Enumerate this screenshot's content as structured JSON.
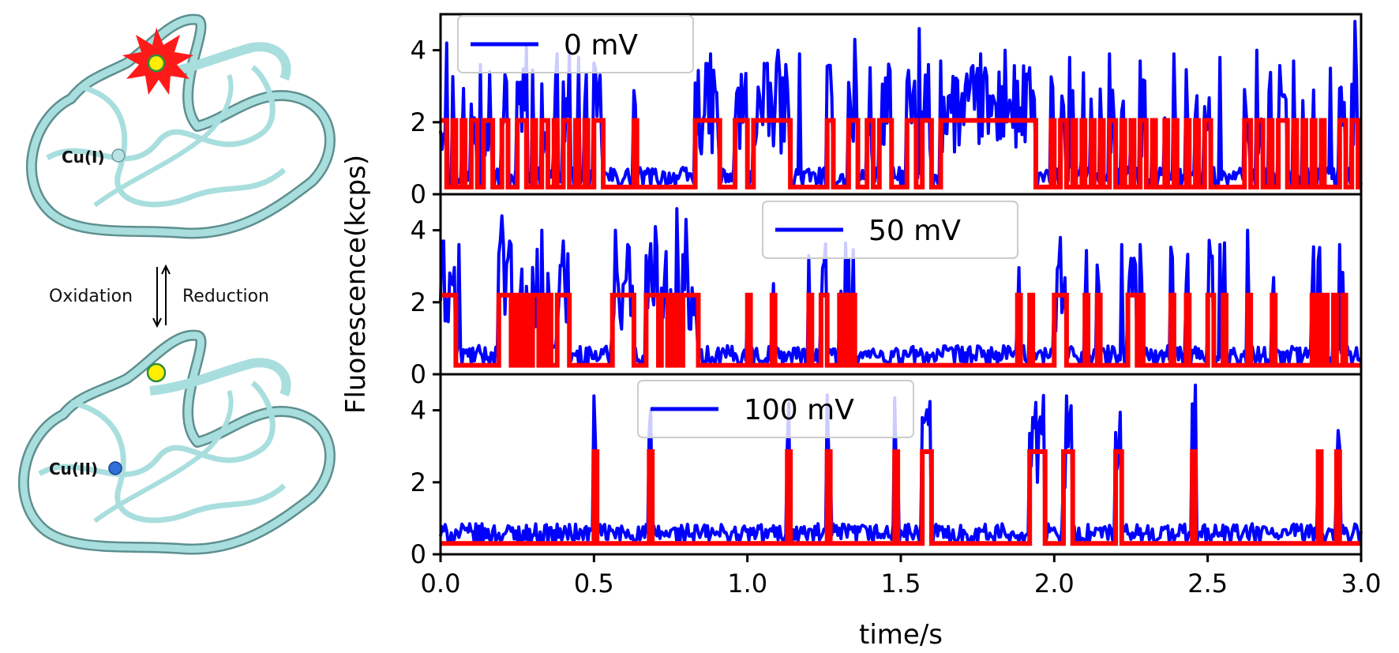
{
  "colors": {
    "raw_trace": "#0000ff",
    "fitted_trace": "#ff0000",
    "ribbon": "#a9dede",
    "ribbon_edge": "#5f8f8f",
    "fluorophore": "#ffee00",
    "burst": "#ff1a1a",
    "cu1_sphere": "#b9e3e3",
    "cu2_sphere": "#2f6fd8"
  },
  "diagram": {
    "label_cu1": "Cu(I)",
    "label_cu2": "Cu(II)",
    "label_oxidation": "Oxidation",
    "label_reduction": "Reduction"
  },
  "chart_data": {
    "type": "line",
    "xlabel": "time/s",
    "ylabel": "Fluorescence(kcps)",
    "xlim": [
      0.0,
      3.0
    ],
    "x_ticks": [
      "0.0",
      "0.5",
      "1.0",
      "1.5",
      "2.0",
      "2.5",
      "3.0"
    ],
    "y_ticks": [
      "0",
      "2",
      "4"
    ],
    "panels": [
      {
        "legend": "0 mV",
        "ylim": [
          0,
          5
        ],
        "high_level": 2.05,
        "low_level": 0.2,
        "on_intervals": [
          [
            0.0,
            0.02
          ],
          [
            0.04,
            0.05
          ],
          [
            0.07,
            0.08
          ],
          [
            0.1,
            0.12
          ],
          [
            0.14,
            0.17
          ],
          [
            0.2,
            0.22
          ],
          [
            0.25,
            0.28
          ],
          [
            0.3,
            0.31
          ],
          [
            0.33,
            0.35
          ],
          [
            0.37,
            0.38
          ],
          [
            0.4,
            0.42
          ],
          [
            0.44,
            0.45
          ],
          [
            0.47,
            0.48
          ],
          [
            0.5,
            0.53
          ],
          [
            0.63,
            0.64
          ],
          [
            0.83,
            0.91
          ],
          [
            0.96,
            1.0
          ],
          [
            1.02,
            1.14
          ],
          [
            1.26,
            1.28
          ],
          [
            1.33,
            1.36
          ],
          [
            1.39,
            1.41
          ],
          [
            1.43,
            1.47
          ],
          [
            1.52,
            1.55
          ],
          [
            1.57,
            1.6
          ],
          [
            1.63,
            1.94
          ],
          [
            1.99,
            2.0
          ],
          [
            2.02,
            2.04
          ],
          [
            2.06,
            2.07
          ],
          [
            2.09,
            2.1
          ],
          [
            2.12,
            2.13
          ],
          [
            2.15,
            2.16
          ],
          [
            2.18,
            2.2
          ],
          [
            2.22,
            2.23
          ],
          [
            2.25,
            2.26
          ],
          [
            2.28,
            2.3
          ],
          [
            2.32,
            2.33
          ],
          [
            2.36,
            2.37
          ],
          [
            2.39,
            2.4
          ],
          [
            2.43,
            2.44
          ],
          [
            2.46,
            2.47
          ],
          [
            2.49,
            2.51
          ],
          [
            2.62,
            2.64
          ],
          [
            2.66,
            2.68
          ],
          [
            2.7,
            2.71
          ],
          [
            2.73,
            2.76
          ],
          [
            2.78,
            2.79
          ],
          [
            2.81,
            2.82
          ],
          [
            2.84,
            2.85
          ],
          [
            2.87,
            2.88
          ],
          [
            2.93,
            2.95
          ],
          [
            2.97,
            2.99
          ]
        ],
        "peaks": [
          [
            0.02,
            4.2
          ],
          [
            0.13,
            3.6
          ],
          [
            0.16,
            3.4
          ],
          [
            0.28,
            4.1
          ],
          [
            0.38,
            3.9
          ],
          [
            0.42,
            4.0
          ],
          [
            0.45,
            3.8
          ],
          [
            0.88,
            3.9
          ],
          [
            1.1,
            4.0
          ],
          [
            1.17,
            3.9
          ],
          [
            1.35,
            4.3
          ],
          [
            1.56,
            4.6
          ],
          [
            1.63,
            3.7
          ],
          [
            1.76,
            3.9
          ],
          [
            1.84,
            4.0
          ],
          [
            2.05,
            3.8
          ],
          [
            2.18,
            3.9
          ],
          [
            2.28,
            3.7
          ],
          [
            2.39,
            3.9
          ],
          [
            2.54,
            3.8
          ],
          [
            2.66,
            4.0
          ],
          [
            2.78,
            3.7
          ],
          [
            2.9,
            3.5
          ],
          [
            2.98,
            4.8
          ]
        ]
      },
      {
        "legend": "50 mV",
        "ylim": [
          0,
          5
        ],
        "high_level": 2.2,
        "low_level": 0.25,
        "on_intervals": [
          [
            0.0,
            0.05
          ],
          [
            0.19,
            0.23
          ],
          [
            0.24,
            0.25
          ],
          [
            0.26,
            0.27
          ],
          [
            0.28,
            0.29
          ],
          [
            0.3,
            0.32
          ],
          [
            0.33,
            0.34
          ],
          [
            0.35,
            0.36
          ],
          [
            0.38,
            0.42
          ],
          [
            0.56,
            0.63
          ],
          [
            0.67,
            0.71
          ],
          [
            0.72,
            0.74
          ],
          [
            0.75,
            0.76
          ],
          [
            0.77,
            0.78
          ],
          [
            0.79,
            0.84
          ],
          [
            1.0,
            1.01
          ],
          [
            1.08,
            1.09
          ],
          [
            1.2,
            1.21
          ],
          [
            1.24,
            1.26
          ],
          [
            1.3,
            1.31
          ],
          [
            1.32,
            1.33
          ],
          [
            1.34,
            1.35
          ],
          [
            1.88,
            1.89
          ],
          [
            1.92,
            1.93
          ],
          [
            2.0,
            2.04
          ],
          [
            2.1,
            2.11
          ],
          [
            2.14,
            2.15
          ],
          [
            2.24,
            2.27
          ],
          [
            2.28,
            2.29
          ],
          [
            2.38,
            2.39
          ],
          [
            2.43,
            2.44
          ],
          [
            2.5,
            2.52
          ],
          [
            2.55,
            2.56
          ],
          [
            2.63,
            2.64
          ],
          [
            2.71,
            2.72
          ],
          [
            2.84,
            2.85
          ],
          [
            2.86,
            2.87
          ],
          [
            2.88,
            2.89
          ],
          [
            2.91,
            2.92
          ],
          [
            2.94,
            2.95
          ]
        ],
        "peaks": [
          [
            0.01,
            3.7
          ],
          [
            0.06,
            3.6
          ],
          [
            0.2,
            4.4
          ],
          [
            0.23,
            3.6
          ],
          [
            0.33,
            4.0
          ],
          [
            0.4,
            3.7
          ],
          [
            0.57,
            4.0
          ],
          [
            0.61,
            3.6
          ],
          [
            0.7,
            4.1
          ],
          [
            0.77,
            4.6
          ],
          [
            0.8,
            4.3
          ],
          [
            1.25,
            3.1
          ],
          [
            1.33,
            3.2
          ],
          [
            2.02,
            3.8
          ],
          [
            2.22,
            3.6
          ],
          [
            2.28,
            3.6
          ],
          [
            2.54,
            3.6
          ],
          [
            2.63,
            4.0
          ],
          [
            2.93,
            3.6
          ]
        ]
      },
      {
        "legend": "100 mV",
        "ylim": [
          0,
          5
        ],
        "high_level": 2.85,
        "low_level": 0.3,
        "on_intervals": [
          [
            0.5,
            0.51
          ],
          [
            0.68,
            0.69
          ],
          [
            1.13,
            1.14
          ],
          [
            1.26,
            1.27
          ],
          [
            1.48,
            1.49
          ],
          [
            1.57,
            1.6
          ],
          [
            1.92,
            1.97
          ],
          [
            2.03,
            2.06
          ],
          [
            2.2,
            2.22
          ],
          [
            2.45,
            2.46
          ],
          [
            2.86,
            2.87
          ],
          [
            2.92,
            2.93
          ]
        ],
        "peaks": [
          [
            0.5,
            4.4
          ],
          [
            0.68,
            3.4
          ],
          [
            1.13,
            3.0
          ],
          [
            1.27,
            2.6
          ],
          [
            1.49,
            2.6
          ],
          [
            1.59,
            3.6
          ],
          [
            1.93,
            3.8
          ],
          [
            1.95,
            3.6
          ],
          [
            2.04,
            4.4
          ],
          [
            2.21,
            2.8
          ],
          [
            2.46,
            4.7
          ],
          [
            2.86,
            2.6
          ],
          [
            2.93,
            3.0
          ]
        ]
      }
    ]
  }
}
